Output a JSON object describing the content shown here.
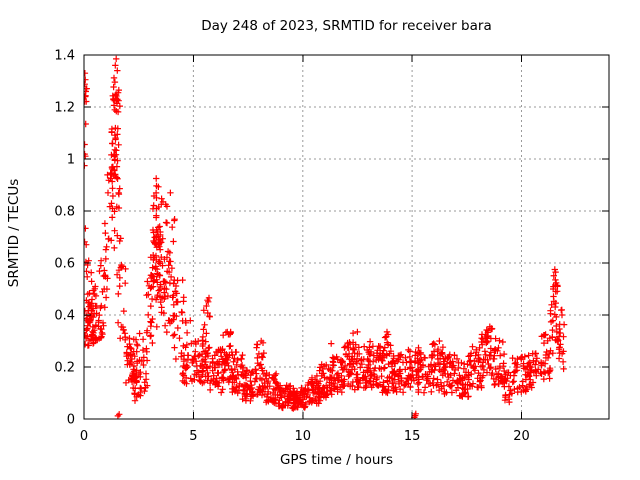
{
  "window": {
    "title": "Day 248 of 2023, SRMTID for receiver bara"
  },
  "colors": {
    "marker": "#ff0000",
    "grid": "#9a9a9a",
    "frame": "#000000",
    "text": "#000000",
    "background": "#ffffff"
  },
  "chart_data": {
    "type": "scatter",
    "title": "Day 248 of 2023, SRMTID for receiver bara",
    "xlabel": "GPS time / hours",
    "ylabel": "SRMTID / TECUs",
    "xlim": [
      0,
      24
    ],
    "ylim": [
      0,
      1.4
    ],
    "xticks": [
      0,
      5,
      10,
      15,
      20
    ],
    "xtick_labels": [
      "0",
      "5",
      "10",
      "15",
      "20"
    ],
    "yticks": [
      0,
      0.2,
      0.4,
      0.6,
      0.8,
      1.0,
      1.2,
      1.4
    ],
    "ytick_labels": [
      "0",
      "0.2",
      "0.4",
      "0.6",
      "0.8",
      "1",
      "1.2",
      "1.4"
    ],
    "grid": true,
    "legend": "none",
    "marker": "plus",
    "marker_color": "#ff0000",
    "point_clusters_format": [
      "x_start",
      "x_end",
      "y_min",
      "y_max",
      "count"
    ],
    "point_clusters": [
      [
        0.0,
        0.15,
        1.2,
        1.31,
        8
      ],
      [
        0.0,
        0.14,
        0.55,
        1.18,
        9
      ],
      [
        0.02,
        0.6,
        0.28,
        0.52,
        55
      ],
      [
        0.25,
        0.9,
        0.3,
        0.46,
        28
      ],
      [
        0.0,
        0.4,
        0.5,
        0.63,
        6
      ],
      [
        0.6,
        1.1,
        0.42,
        0.62,
        12
      ],
      [
        0.95,
        1.25,
        0.5,
        0.95,
        14
      ],
      [
        1.2,
        1.55,
        0.82,
        1.06,
        16
      ],
      [
        1.25,
        1.65,
        0.95,
        1.3,
        30
      ],
      [
        1.3,
        1.6,
        1.18,
        1.32,
        12
      ],
      [
        1.25,
        1.7,
        0.55,
        0.95,
        20
      ],
      [
        1.55,
        1.95,
        0.3,
        0.6,
        18
      ],
      [
        1.9,
        2.45,
        0.13,
        0.32,
        45
      ],
      [
        2.2,
        2.6,
        0.07,
        0.18,
        18
      ],
      [
        2.5,
        2.9,
        0.1,
        0.35,
        20
      ],
      [
        2.85,
        3.15,
        0.25,
        0.6,
        22
      ],
      [
        3.05,
        3.55,
        0.45,
        0.92,
        40
      ],
      [
        3.15,
        3.5,
        0.52,
        0.72,
        25
      ],
      [
        3.3,
        3.7,
        0.35,
        0.72,
        22
      ],
      [
        3.6,
        4.15,
        0.3,
        0.85,
        38
      ],
      [
        4.1,
        4.6,
        0.22,
        0.55,
        25
      ],
      [
        4.5,
        5.0,
        0.13,
        0.38,
        30
      ],
      [
        5.0,
        5.45,
        0.14,
        0.3,
        30
      ],
      [
        5.4,
        5.8,
        0.12,
        0.33,
        26
      ],
      [
        5.45,
        5.75,
        0.3,
        0.47,
        10
      ],
      [
        5.75,
        6.35,
        0.1,
        0.27,
        40
      ],
      [
        6.3,
        6.8,
        0.14,
        0.34,
        42
      ],
      [
        6.75,
        7.3,
        0.1,
        0.26,
        40
      ],
      [
        7.25,
        7.9,
        0.07,
        0.2,
        42
      ],
      [
        7.85,
        8.3,
        0.09,
        0.3,
        35
      ],
      [
        8.25,
        8.85,
        0.06,
        0.18,
        40
      ],
      [
        8.8,
        9.6,
        0.04,
        0.13,
        55
      ],
      [
        9.5,
        10.25,
        0.04,
        0.12,
        55
      ],
      [
        10.2,
        10.8,
        0.06,
        0.17,
        40
      ],
      [
        10.75,
        11.35,
        0.08,
        0.22,
        42
      ],
      [
        11.3,
        11.9,
        0.1,
        0.24,
        42
      ],
      [
        11.85,
        12.5,
        0.11,
        0.3,
        45
      ],
      [
        12.45,
        13.1,
        0.12,
        0.28,
        45
      ],
      [
        13.05,
        13.65,
        0.12,
        0.3,
        42
      ],
      [
        13.6,
        14.15,
        0.1,
        0.32,
        40
      ],
      [
        14.1,
        14.7,
        0.1,
        0.26,
        40
      ],
      [
        14.65,
        15.3,
        0.12,
        0.28,
        40
      ],
      [
        15.25,
        15.9,
        0.1,
        0.26,
        40
      ],
      [
        15.85,
        16.5,
        0.11,
        0.3,
        42
      ],
      [
        16.45,
        17.1,
        0.09,
        0.25,
        40
      ],
      [
        17.05,
        17.6,
        0.08,
        0.22,
        35
      ],
      [
        17.55,
        18.2,
        0.12,
        0.28,
        40
      ],
      [
        18.15,
        18.75,
        0.15,
        0.35,
        40
      ],
      [
        18.7,
        19.25,
        0.13,
        0.31,
        35
      ],
      [
        19.2,
        19.6,
        0.06,
        0.18,
        20
      ],
      [
        19.55,
        20.3,
        0.1,
        0.24,
        35
      ],
      [
        20.25,
        20.9,
        0.12,
        0.27,
        32
      ],
      [
        20.85,
        21.35,
        0.15,
        0.33,
        28
      ],
      [
        21.3,
        21.75,
        0.25,
        0.5,
        26
      ],
      [
        21.45,
        21.65,
        0.48,
        0.57,
        10
      ],
      [
        21.7,
        21.95,
        0.18,
        0.42,
        14
      ]
    ],
    "points": [
      [
        0.04,
        1.33
      ],
      [
        0.06,
        1.305
      ],
      [
        0.09,
        1.27
      ],
      [
        0.05,
        1.24
      ],
      [
        1.43,
        1.36
      ],
      [
        1.47,
        1.385
      ],
      [
        1.52,
        1.34
      ],
      [
        1.55,
        0.012
      ],
      [
        1.61,
        0.018
      ],
      [
        3.3,
        0.925
      ],
      [
        3.95,
        0.87
      ],
      [
        6.55,
        0.335
      ],
      [
        8.1,
        0.3
      ],
      [
        11.3,
        0.29
      ],
      [
        12.3,
        0.33
      ],
      [
        12.5,
        0.335
      ],
      [
        13.85,
        0.335
      ],
      [
        13.9,
        0.325
      ],
      [
        15.1,
        0.006
      ],
      [
        15.14,
        0.013
      ],
      [
        15.17,
        0.02
      ],
      [
        18.55,
        0.355
      ],
      [
        18.62,
        0.348
      ],
      [
        21.52,
        0.575
      ],
      [
        21.56,
        0.565
      ],
      [
        21.85,
        0.4
      ],
      [
        21.9,
        0.22
      ]
    ]
  }
}
